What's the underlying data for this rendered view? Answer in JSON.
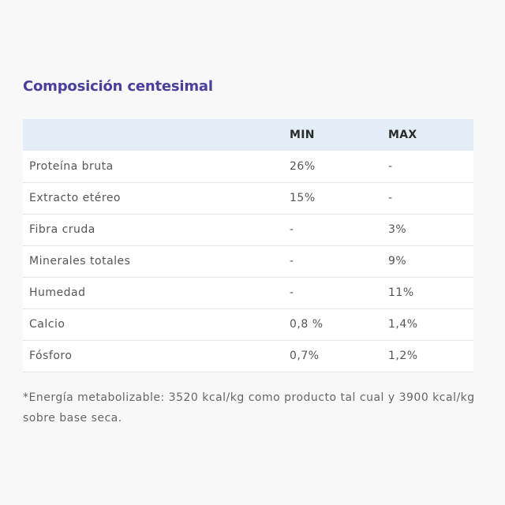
{
  "section": {
    "title": "Composición centesimal"
  },
  "table": {
    "headers": [
      "",
      "MIN",
      "MAX"
    ],
    "rows": [
      {
        "name": "Proteína bruta",
        "min": "26%",
        "max": "-"
      },
      {
        "name": "Extracto etéreo",
        "min": "15%",
        "max": "-"
      },
      {
        "name": "Fibra cruda",
        "min": "-",
        "max": "3%"
      },
      {
        "name": "Minerales totales",
        "min": "-",
        "max": "9%"
      },
      {
        "name": "Humedad",
        "min": "-",
        "max": "11%"
      },
      {
        "name": "Calcio",
        "min": "0,8 %",
        "max": "1,4%"
      },
      {
        "name": "Fósforo",
        "min": "0,7%",
        "max": "1,2%"
      }
    ]
  },
  "footnote": "*Energía metabolizable: 3520 kcal/kg como producto tal cual y 3900 kcal/kg sobre base seca.",
  "colors": {
    "title": "#4a3f9a",
    "header_bg": "#e3eef8",
    "page_bg": "#f8f8f9"
  }
}
